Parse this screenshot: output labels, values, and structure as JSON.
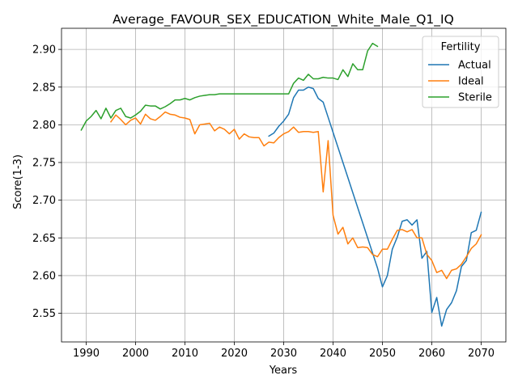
{
  "chart_data": {
    "type": "line",
    "title": "Average_FAVOUR_SEX_EDUCATION_White_Male_Q1_IQ",
    "xlabel": "Years",
    "ylabel": "Score(1-3)",
    "xlim": [
      1985,
      2075
    ],
    "ylim": [
      2.512,
      2.928
    ],
    "xticks": [
      1990,
      2000,
      2010,
      2020,
      2030,
      2040,
      2050,
      2060,
      2070
    ],
    "yticks": [
      2.55,
      2.6,
      2.65,
      2.7,
      2.75,
      2.8,
      2.85,
      2.9
    ],
    "ytick_labels": [
      "2.55",
      "2.60",
      "2.65",
      "2.70",
      "2.75",
      "2.80",
      "2.85",
      "2.90"
    ],
    "grid": true,
    "legend": {
      "title": "Fertility",
      "placement": "top-right"
    },
    "series": [
      {
        "name": "Actual",
        "color": "#1f77b4",
        "x": [
          2027,
          2028,
          2029,
          2030,
          2031,
          2032,
          2033,
          2034,
          2035,
          2036,
          2037,
          2038,
          2039,
          2040,
          2041,
          2042,
          2043,
          2044,
          2045,
          2046,
          2047,
          2048,
          2049,
          2050,
          2051,
          2052,
          2053,
          2054,
          2055,
          2056,
          2057,
          2058,
          2059,
          2060,
          2061,
          2062,
          2063,
          2064,
          2065,
          2066,
          2067,
          2068,
          2069,
          2070
        ],
        "y": [
          2.785,
          2.789,
          2.798,
          2.805,
          2.814,
          2.836,
          2.846,
          2.846,
          2.85,
          2.848,
          2.835,
          2.83,
          2.81,
          2.79,
          2.77,
          2.75,
          2.73,
          2.71,
          2.69,
          2.67,
          2.65,
          2.63,
          2.61,
          2.585,
          2.6,
          2.635,
          2.651,
          2.672,
          2.674,
          2.667,
          2.674,
          2.623,
          2.632,
          2.551,
          2.571,
          2.533,
          2.555,
          2.564,
          2.58,
          2.612,
          2.62,
          2.657,
          2.66,
          2.684
        ]
      },
      {
        "name": "Ideal",
        "color": "#ff7f0e",
        "x": [
          1995,
          1996,
          1997,
          1998,
          1999,
          2000,
          2001,
          2002,
          2003,
          2004,
          2005,
          2006,
          2007,
          2008,
          2009,
          2010,
          2011,
          2012,
          2013,
          2014,
          2015,
          2016,
          2017,
          2018,
          2019,
          2020,
          2021,
          2022,
          2023,
          2024,
          2025,
          2026,
          2027,
          2028,
          2029,
          2030,
          2031,
          2032,
          2033,
          2034,
          2035,
          2036,
          2037,
          2038,
          2039,
          2040,
          2041,
          2042,
          2043,
          2044,
          2045,
          2046,
          2047,
          2048,
          2049,
          2050,
          2051,
          2052,
          2053,
          2054,
          2055,
          2056,
          2057,
          2058,
          2059,
          2060,
          2061,
          2062,
          2063,
          2064,
          2065,
          2066,
          2067,
          2068,
          2069,
          2070
        ],
        "y": [
          2.804,
          2.813,
          2.807,
          2.8,
          2.806,
          2.809,
          2.801,
          2.814,
          2.808,
          2.806,
          2.811,
          2.817,
          2.814,
          2.813,
          2.81,
          2.809,
          2.807,
          2.788,
          2.8,
          2.801,
          2.802,
          2.792,
          2.797,
          2.794,
          2.788,
          2.794,
          2.781,
          2.788,
          2.784,
          2.783,
          2.783,
          2.772,
          2.777,
          2.776,
          2.783,
          2.788,
          2.791,
          2.797,
          2.79,
          2.791,
          2.791,
          2.79,
          2.791,
          2.711,
          2.779,
          2.68,
          2.655,
          2.664,
          2.642,
          2.65,
          2.637,
          2.638,
          2.637,
          2.628,
          2.625,
          2.635,
          2.635,
          2.648,
          2.66,
          2.661,
          2.658,
          2.661,
          2.65,
          2.65,
          2.628,
          2.62,
          2.604,
          2.607,
          2.596,
          2.607,
          2.609,
          2.615,
          2.625,
          2.636,
          2.642,
          2.654
        ]
      },
      {
        "name": "Sterile",
        "color": "#2ca02c",
        "x": [
          1989,
          1990,
          1991,
          1992,
          1993,
          1994,
          1995,
          1996,
          1997,
          1998,
          1999,
          2000,
          2001,
          2002,
          2003,
          2004,
          2005,
          2006,
          2007,
          2008,
          2009,
          2010,
          2011,
          2012,
          2013,
          2014,
          2015,
          2016,
          2017,
          2018,
          2019,
          2020,
          2021,
          2022,
          2023,
          2024,
          2025,
          2026,
          2027,
          2028,
          2029,
          2030,
          2031,
          2032,
          2033,
          2034,
          2035,
          2036,
          2037,
          2038,
          2039,
          2040,
          2041,
          2042,
          2043,
          2044,
          2045,
          2046,
          2047,
          2048,
          2049
        ],
        "y": [
          2.793,
          2.805,
          2.811,
          2.819,
          2.808,
          2.822,
          2.809,
          2.819,
          2.822,
          2.811,
          2.809,
          2.813,
          2.818,
          2.826,
          2.825,
          2.825,
          2.821,
          2.824,
          2.828,
          2.833,
          2.833,
          2.835,
          2.833,
          2.836,
          2.838,
          2.839,
          2.84,
          2.84,
          2.841,
          2.841,
          2.841,
          2.841,
          2.841,
          2.841,
          2.841,
          2.841,
          2.841,
          2.841,
          2.841,
          2.841,
          2.841,
          2.841,
          2.841,
          2.855,
          2.862,
          2.859,
          2.867,
          2.861,
          2.861,
          2.863,
          2.862,
          2.862,
          2.86,
          2.873,
          2.864,
          2.881,
          2.873,
          2.873,
          2.898,
          2.908,
          2.904
        ]
      }
    ]
  }
}
